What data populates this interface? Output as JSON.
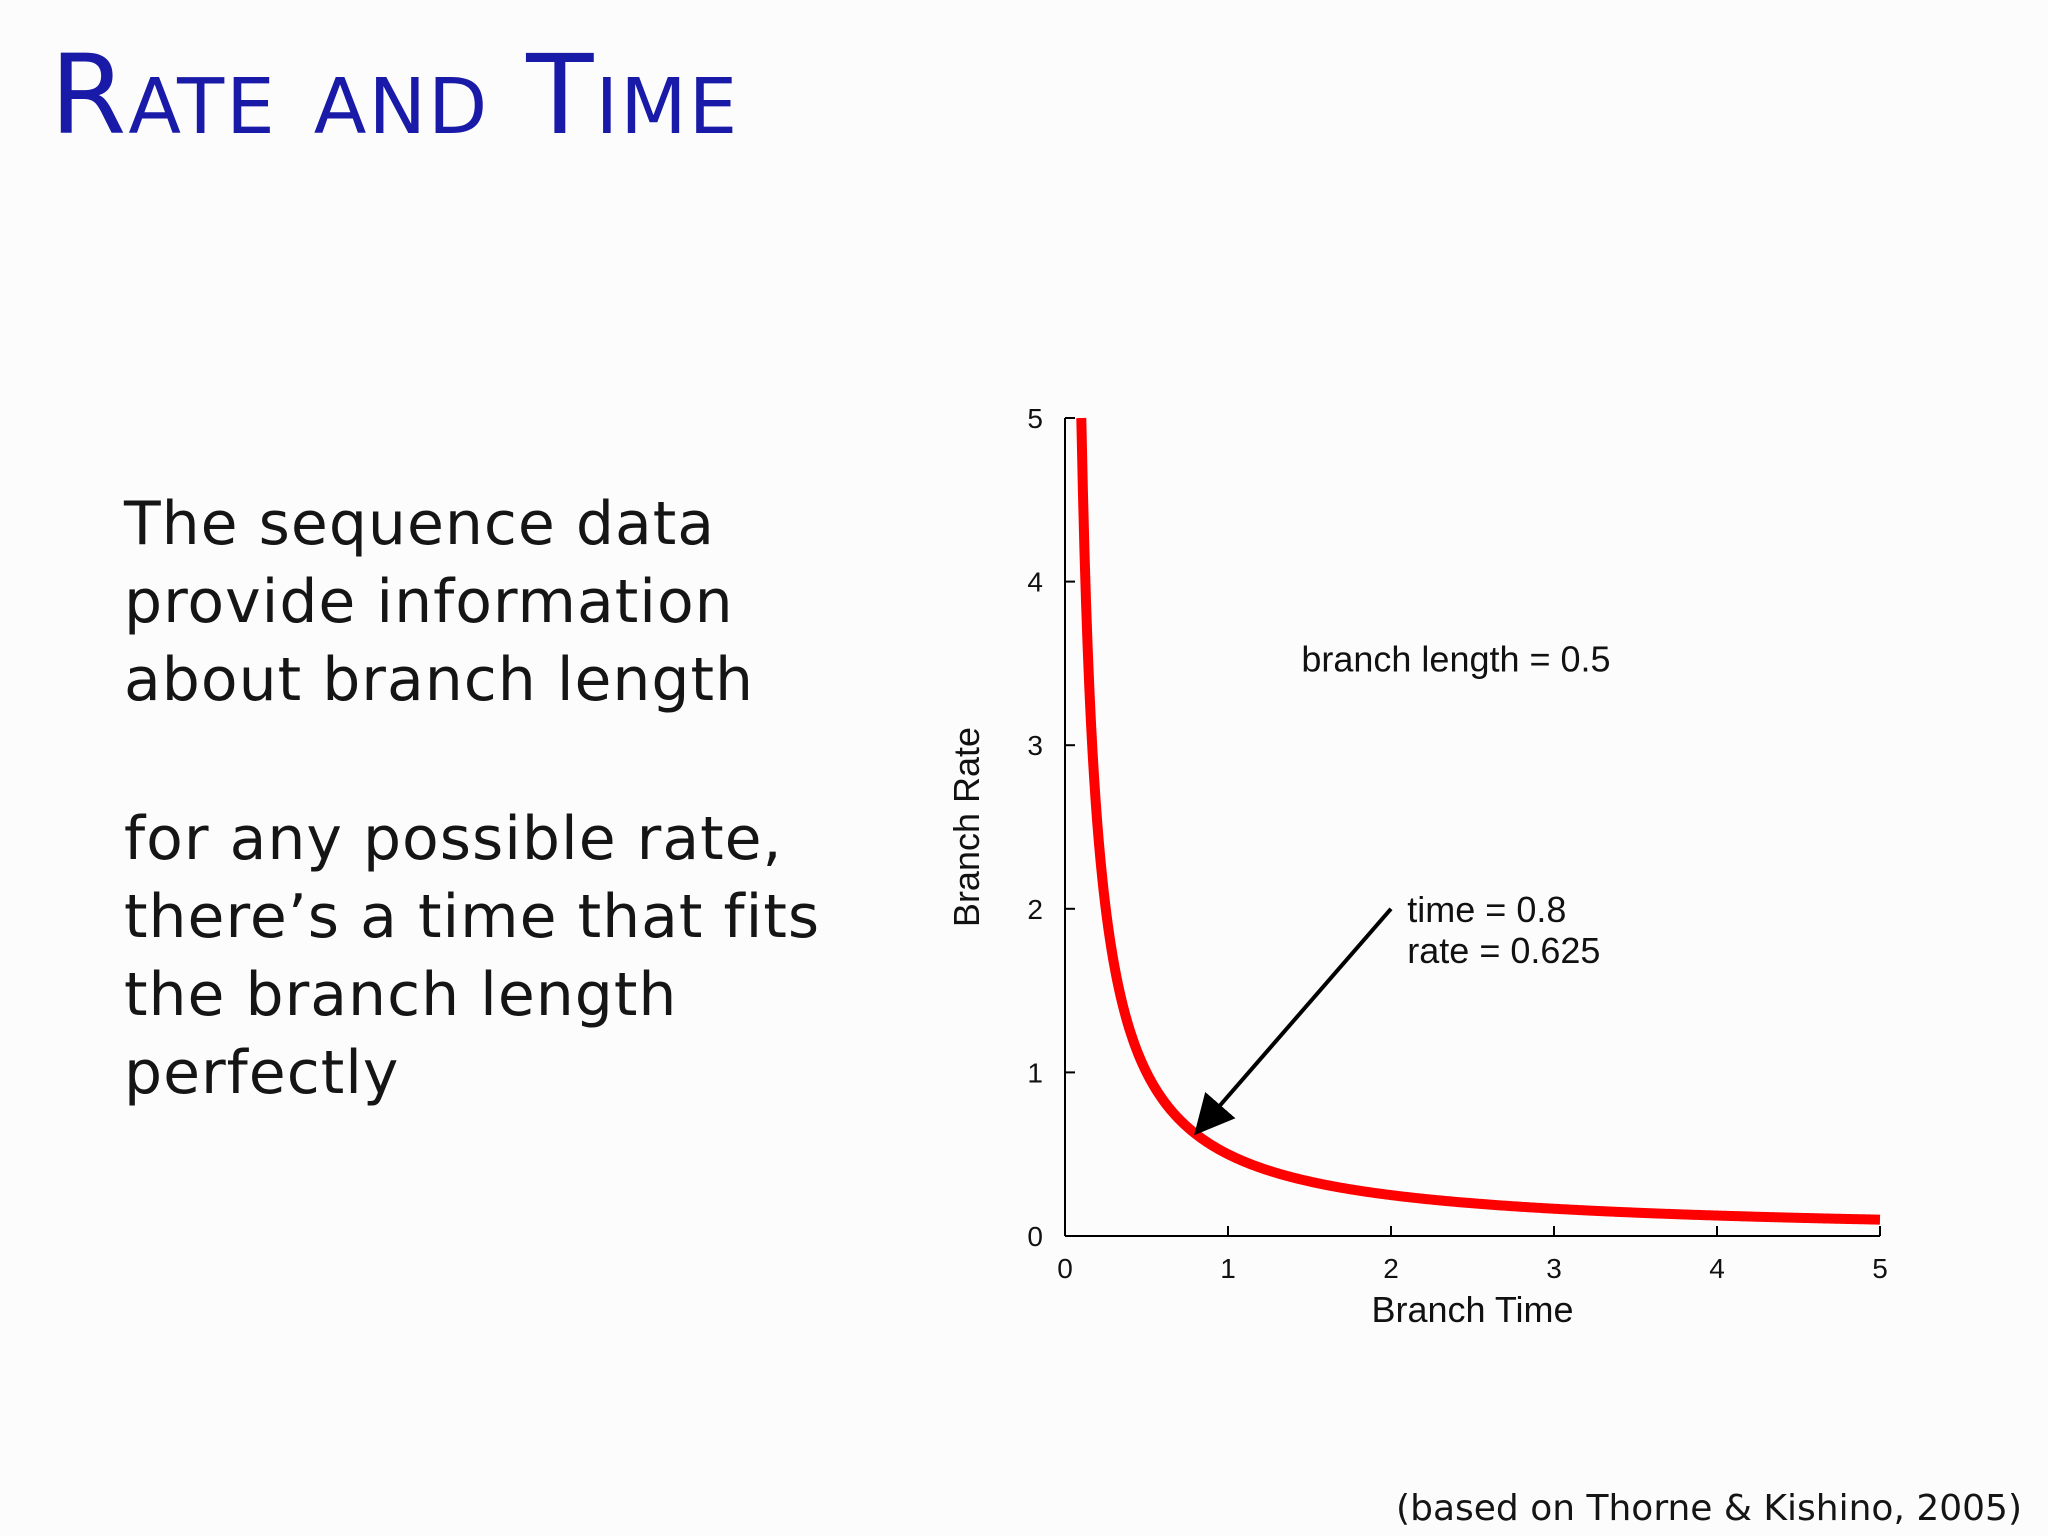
{
  "slide": {
    "title": "Rate and Time",
    "paragraph_1": "The sequence data\nprovide information\nabout branch length",
    "paragraph_2": "for any possible rate,\nthere’s a time that fits\nthe branch length\nperfectly",
    "citation": "(based on Thorne & Kishino, 2005)",
    "title_color": "#1a1aa8"
  },
  "chart_data": {
    "type": "line",
    "xlabel": "Branch Time",
    "ylabel": "Branch Rate",
    "xlim": [
      0,
      5
    ],
    "ylim": [
      0,
      5
    ],
    "x_ticks": [
      0,
      1,
      2,
      3,
      4,
      5
    ],
    "y_ticks": [
      0,
      1,
      2,
      3,
      4,
      5
    ],
    "grid": false,
    "legend": "none",
    "series": [
      {
        "relation": "rate = branch length / time",
        "branch_length": 0.5,
        "x_range": [
          0.1,
          5
        ],
        "color": "#ff0000"
      }
    ],
    "annotations": {
      "branch_length_text": "branch length = 0.5",
      "point_time_text": "time = 0.8",
      "point_rate_text": "rate = 0.625",
      "point": {
        "x": 0.8,
        "y": 0.625
      },
      "arrow_tail": {
        "x": 2.0,
        "y": 2.0
      }
    }
  }
}
